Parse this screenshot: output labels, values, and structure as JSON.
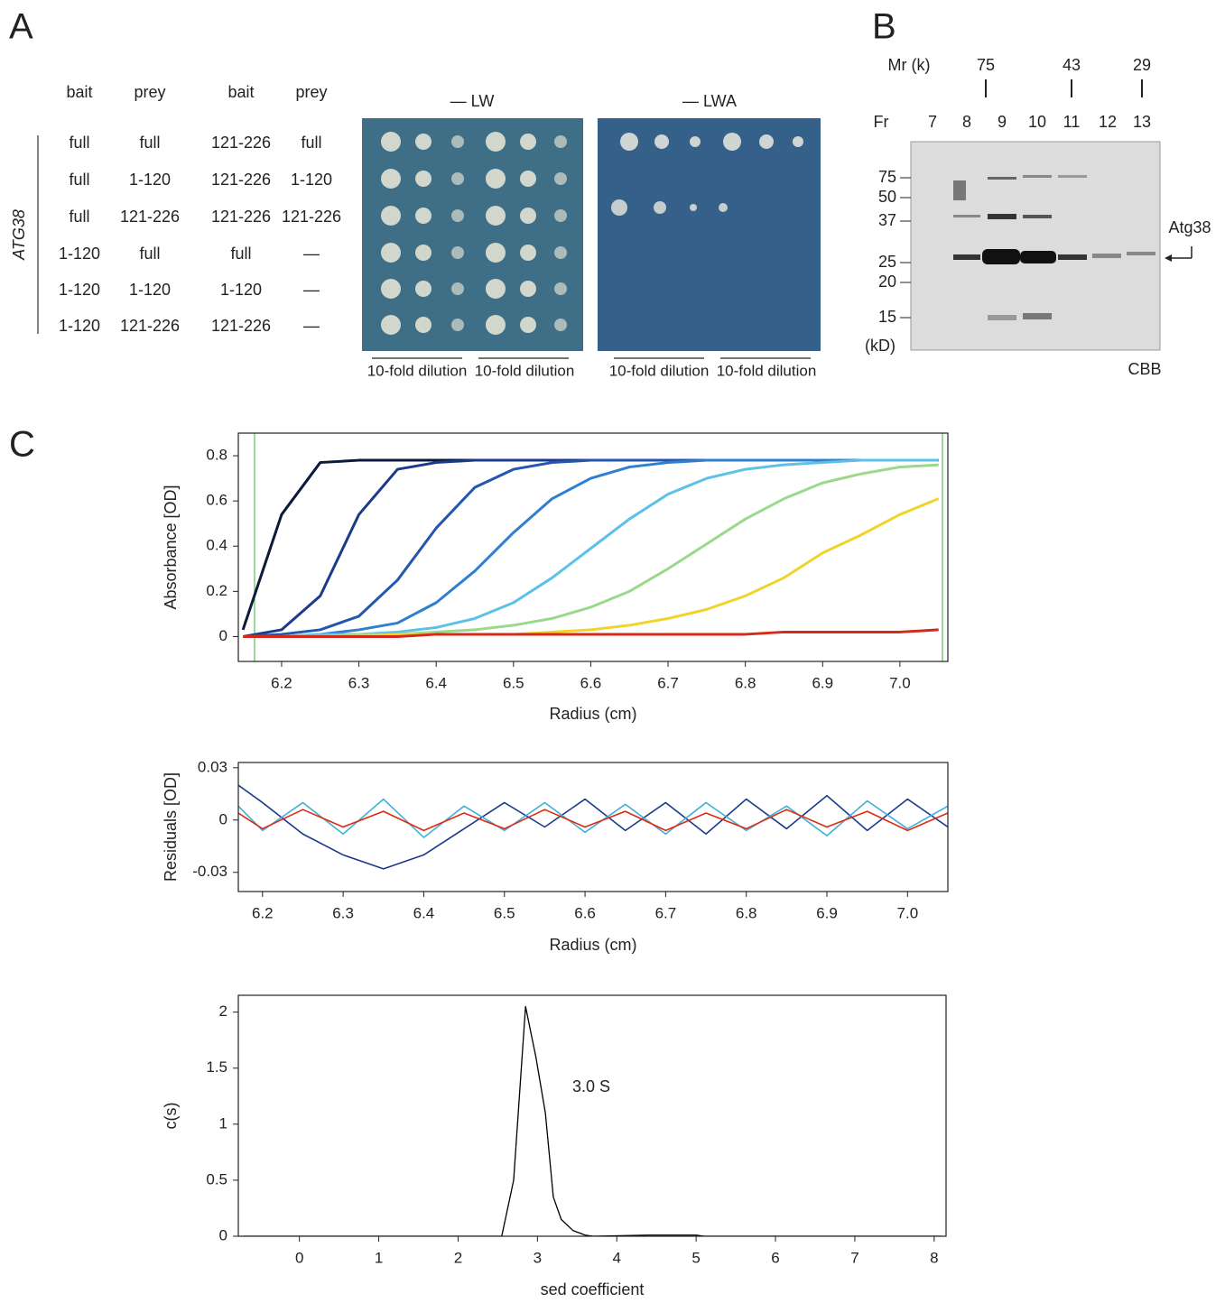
{
  "panel_a": {
    "label": "A",
    "headers": [
      "bait",
      "prey",
      "bait",
      "prey"
    ],
    "rows": [
      [
        "full",
        "full",
        "121-226",
        "full"
      ],
      [
        "full",
        "1-120",
        "121-226",
        "1-120"
      ],
      [
        "full",
        "121-226",
        "121-226",
        "121-226"
      ],
      [
        "1-120",
        "full",
        "full",
        "—"
      ],
      [
        "1-120",
        "1-120",
        "1-120",
        "—"
      ],
      [
        "1-120",
        "121-226",
        "121-226",
        "—"
      ]
    ],
    "gene": "ATG38",
    "plates": [
      "— LW",
      "— LWA"
    ],
    "dilutions": [
      "10-fold dilution",
      "10-fold dilution",
      "10-fold dilution",
      "10-fold dilution"
    ]
  },
  "panel_b": {
    "label": "B",
    "mr_label": "Mr (k)",
    "mr_markers": [
      75,
      43,
      29
    ],
    "fraction_label": "Fr",
    "fractions": [
      7,
      8,
      9,
      10,
      11,
      12,
      13
    ],
    "kd_markers": [
      75,
      50,
      37,
      25,
      20,
      15
    ],
    "kd_unit": "(kD)",
    "protein": "Atg38",
    "stain": "CBB"
  },
  "panel_c_label": "C",
  "chart_data": [
    {
      "type": "line",
      "y_label": "Absorbance [OD]",
      "x_label": "Radius (cm)",
      "xlim": [
        6.144,
        7.062
      ],
      "ylim": [
        -0.11,
        0.9
      ],
      "xticks": [
        6.2,
        6.3,
        6.4,
        6.5,
        6.6,
        6.7,
        6.8,
        6.9,
        {
          "value": 7,
          "label": "7.0"
        }
      ],
      "yticks": [
        0,
        0.2,
        0.4,
        0.6,
        0.8
      ],
      "vlines": [
        6.165,
        7.055
      ],
      "vline_color": "#5cbf5c",
      "x": [
        6.15,
        6.2,
        6.25,
        6.3,
        6.35,
        6.4,
        6.45,
        6.5,
        6.55,
        6.6,
        6.65,
        6.7,
        6.75,
        6.8,
        6.85,
        6.9,
        6.95,
        7.0,
        7.05
      ],
      "series": [
        {
          "color": "#0b1a3a",
          "values": [
            0.03,
            0.54,
            0.77,
            0.78,
            0.78,
            0.78,
            0.78,
            0.78,
            0.78,
            0.78,
            0.78,
            0.78,
            0.78,
            0.78,
            0.78,
            0.78,
            0.78,
            0.78,
            0.78
          ]
        },
        {
          "color": "#1c3a8c",
          "values": [
            0,
            0.03,
            0.18,
            0.54,
            0.74,
            0.77,
            0.78,
            0.78,
            0.78,
            0.78,
            0.78,
            0.78,
            0.78,
            0.78,
            0.78,
            0.78,
            0.78,
            0.78,
            0.78
          ]
        },
        {
          "color": "#2456b0",
          "values": [
            0,
            0.01,
            0.03,
            0.09,
            0.25,
            0.48,
            0.66,
            0.74,
            0.77,
            0.78,
            0.78,
            0.78,
            0.78,
            0.78,
            0.78,
            0.78,
            0.78,
            0.78,
            0.78
          ]
        },
        {
          "color": "#2f7fd0",
          "values": [
            0,
            0,
            0.01,
            0.03,
            0.06,
            0.15,
            0.29,
            0.46,
            0.61,
            0.7,
            0.75,
            0.77,
            0.78,
            0.78,
            0.78,
            0.78,
            0.78,
            0.78,
            0.78
          ]
        },
        {
          "color": "#5cc0e8",
          "values": [
            0,
            0,
            0.01,
            0.01,
            0.02,
            0.04,
            0.08,
            0.15,
            0.26,
            0.39,
            0.52,
            0.63,
            0.7,
            0.74,
            0.76,
            0.77,
            0.78,
            0.78,
            0.78
          ]
        },
        {
          "color": "#9ad98a",
          "values": [
            0,
            0,
            0,
            0.01,
            0.01,
            0.02,
            0.03,
            0.05,
            0.08,
            0.13,
            0.2,
            0.3,
            0.41,
            0.52,
            0.61,
            0.68,
            0.72,
            0.75,
            0.76
          ]
        },
        {
          "color": "#f2d32a",
          "values": [
            0,
            0,
            0,
            0,
            0.01,
            0.01,
            0.01,
            0.01,
            0.02,
            0.03,
            0.05,
            0.08,
            0.12,
            0.18,
            0.26,
            0.37,
            0.45,
            0.54,
            0.61
          ]
        },
        {
          "color": "#d42a1a",
          "values": [
            0,
            0,
            0,
            0,
            0,
            0.01,
            0.01,
            0.01,
            0.01,
            0.01,
            0.01,
            0.01,
            0.01,
            0.01,
            0.02,
            0.02,
            0.02,
            0.02,
            0.03
          ]
        }
      ]
    },
    {
      "type": "line",
      "y_label": "Residuals [OD]",
      "x_label": "Radius (cm)",
      "xlim": [
        6.17,
        7.05
      ],
      "ylim": [
        -0.041,
        0.033
      ],
      "xticks": [
        6.2,
        6.3,
        6.4,
        6.5,
        6.6,
        6.7,
        6.8,
        6.9,
        {
          "value": 7,
          "label": "7.0"
        }
      ],
      "yticks": [
        -0.03,
        0,
        0.03
      ],
      "x": [
        6.17,
        6.2,
        6.25,
        6.3,
        6.35,
        6.4,
        6.45,
        6.5,
        6.55,
        6.6,
        6.65,
        6.7,
        6.75,
        6.8,
        6.85,
        6.9,
        6.95,
        7.0,
        7.05
      ],
      "series": [
        {
          "color": "#1c3a8c",
          "values": [
            0.02,
            0.01,
            -0.008,
            -0.02,
            -0.028,
            -0.02,
            -0.005,
            0.01,
            -0.004,
            0.012,
            -0.006,
            0.01,
            -0.008,
            0.012,
            -0.005,
            0.014,
            -0.006,
            0.012,
            -0.004
          ]
        },
        {
          "color": "#3fb0d8",
          "values": [
            0.008,
            -0.006,
            0.01,
            -0.008,
            0.012,
            -0.01,
            0.008,
            -0.006,
            0.01,
            -0.007,
            0.009,
            -0.008,
            0.01,
            -0.006,
            0.008,
            -0.009,
            0.011,
            -0.005,
            0.008
          ]
        },
        {
          "color": "#e02a10",
          "values": [
            0.004,
            -0.005,
            0.006,
            -0.004,
            0.005,
            -0.006,
            0.004,
            -0.005,
            0.006,
            -0.004,
            0.005,
            -0.006,
            0.004,
            -0.005,
            0.006,
            -0.004,
            0.005,
            -0.006,
            0.004
          ]
        }
      ]
    },
    {
      "type": "line",
      "y_label": "c(s)",
      "x_label": "sed coefficient",
      "annotation": "3.0 S",
      "xlim": [
        -0.77,
        8.15
      ],
      "ylim": [
        0,
        2.15
      ],
      "xticks": [
        0,
        1,
        2,
        3,
        4,
        5,
        6,
        7,
        8
      ],
      "yticks": [
        0,
        0.5,
        1,
        1.5,
        2
      ],
      "x": [
        -0.7,
        2.55,
        2.7,
        2.85,
        2.98,
        3.1,
        3.2,
        3.3,
        3.45,
        3.6,
        3.7,
        4.4,
        5.0,
        5.1,
        8.1
      ],
      "values": [
        0,
        0,
        0.5,
        2.05,
        1.6,
        1.1,
        0.35,
        0.15,
        0.05,
        0.01,
        0,
        0.01,
        0.01,
        0,
        0
      ],
      "color": "#000000"
    }
  ]
}
